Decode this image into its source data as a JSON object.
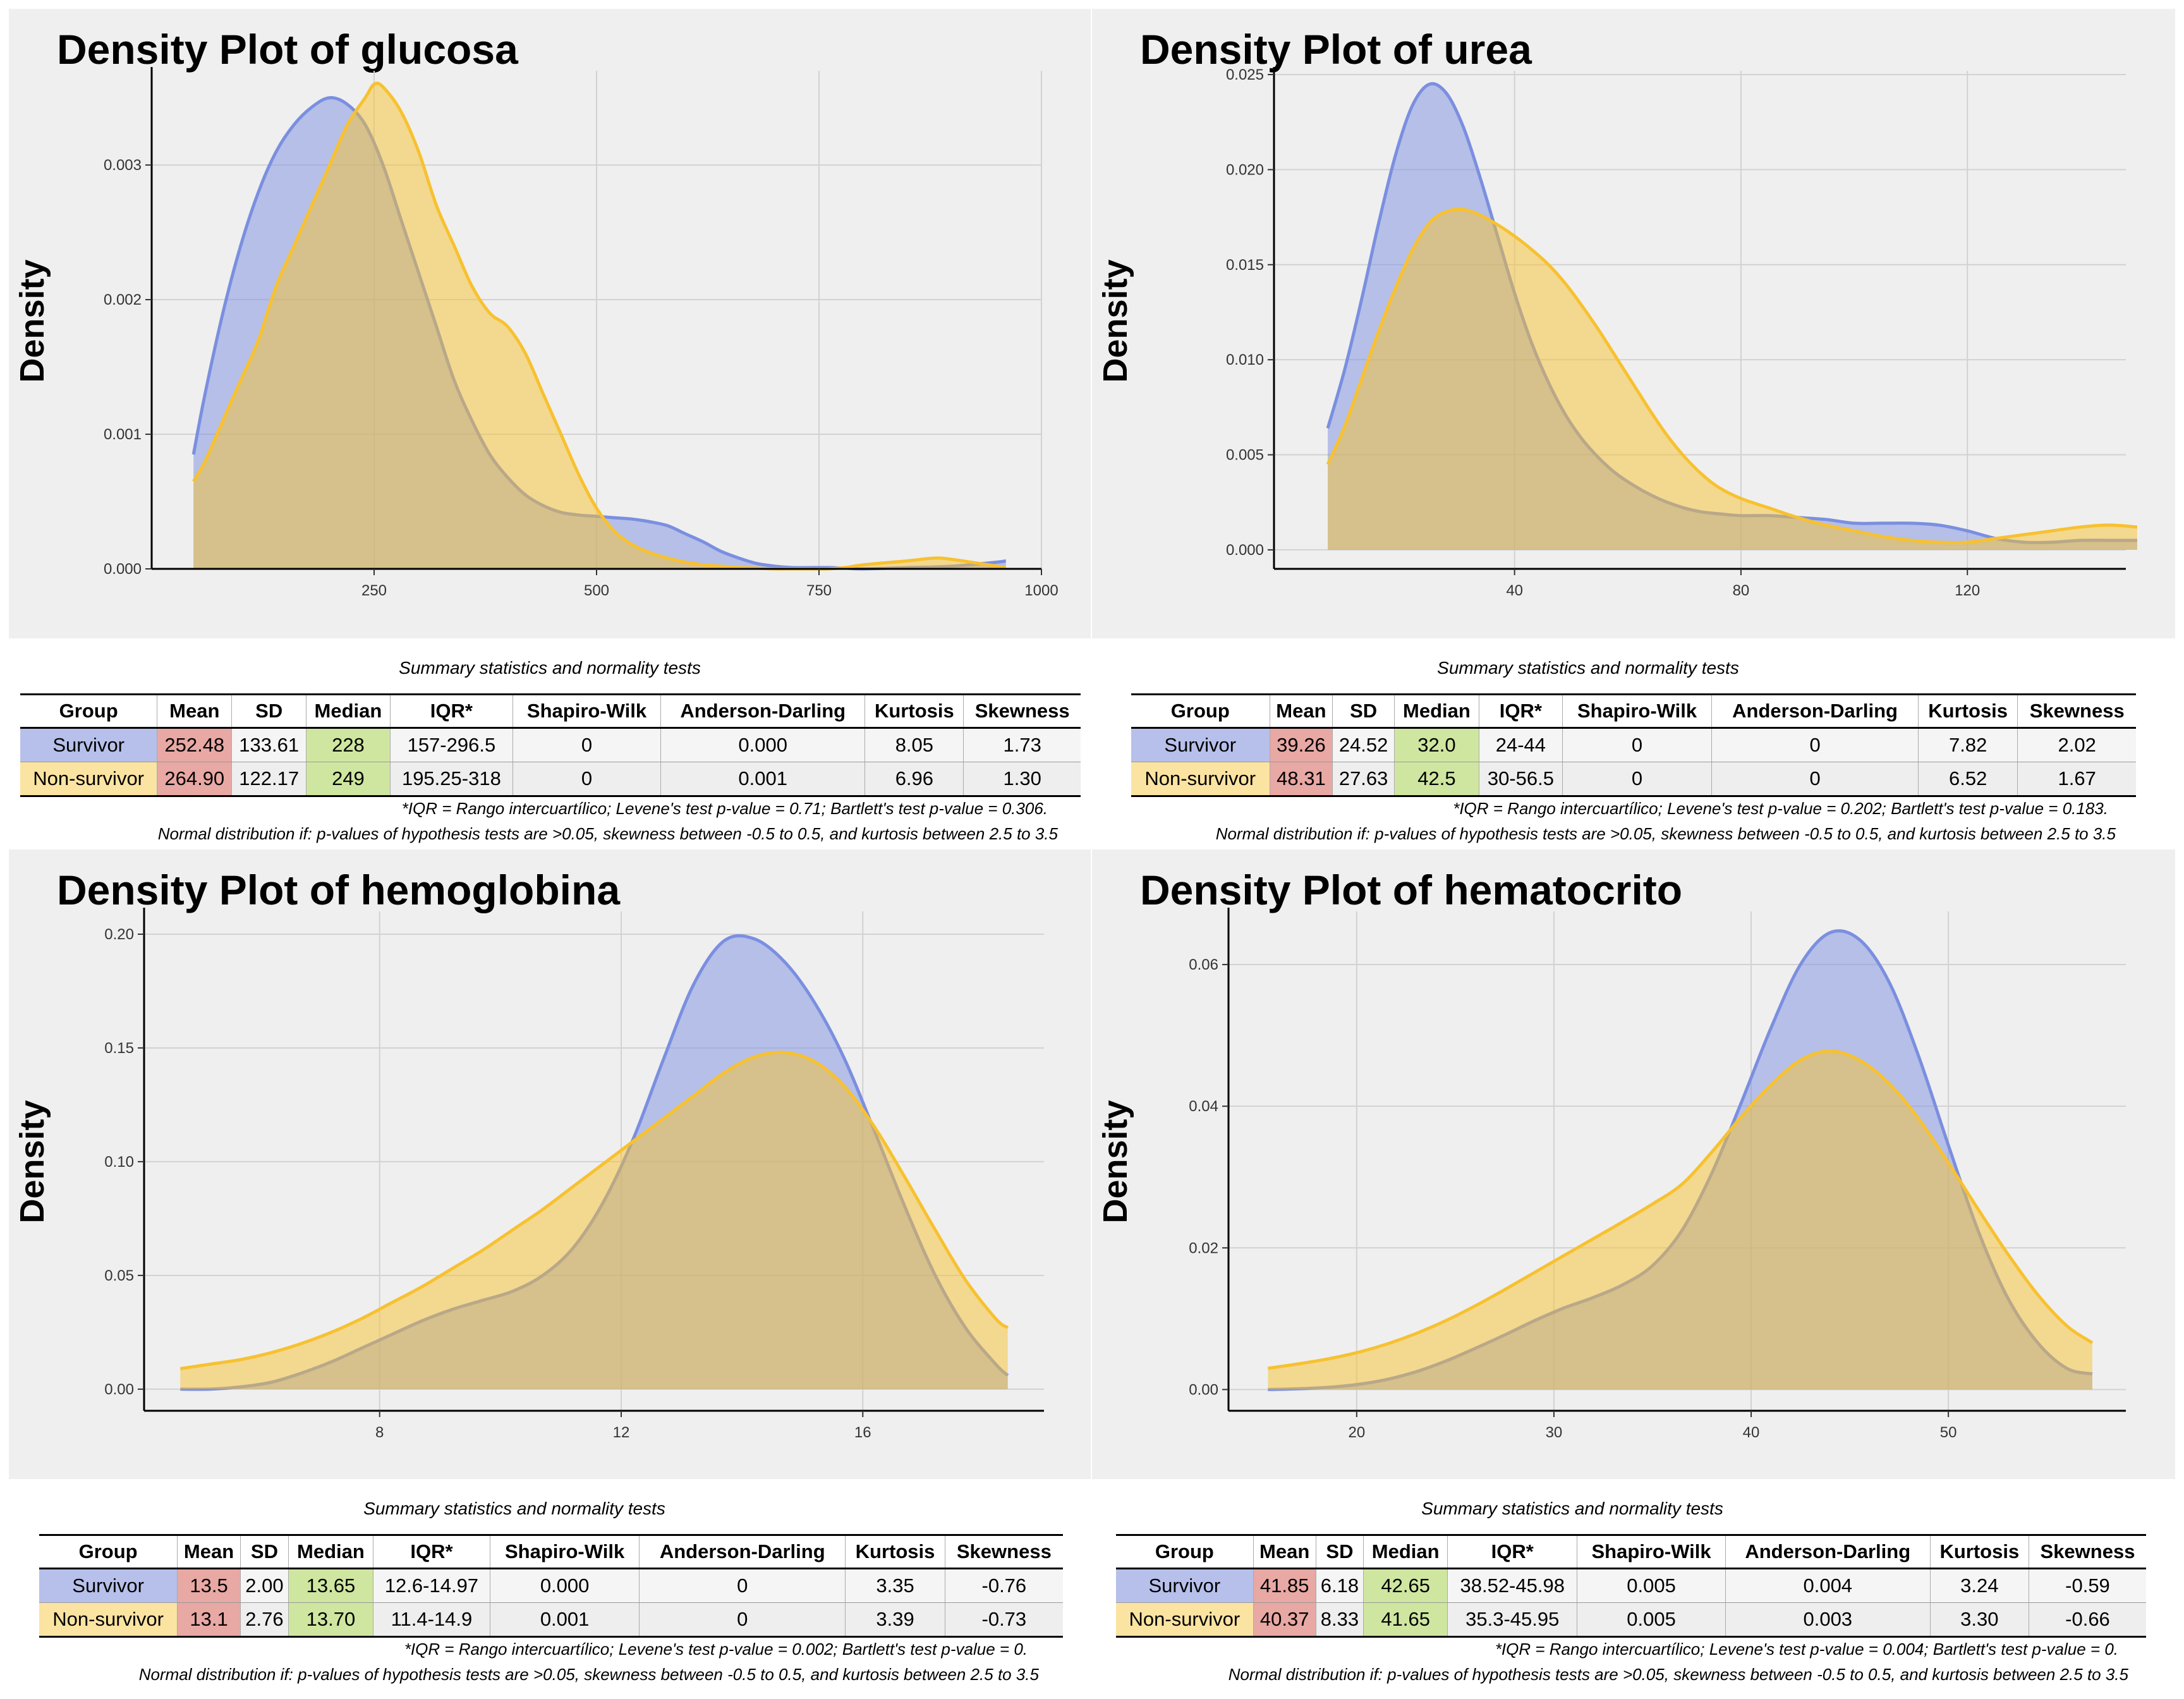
{
  "colors": {
    "survivor": "#7b8fe0",
    "nonsurvivor": "#f7c130",
    "mean_cell": "#e8a8a4",
    "median_cell": "#cfe6a0",
    "survivor_cell": "#b7c0ea",
    "nonsurvivor_cell": "#fbe3a1"
  },
  "chart_data": [
    {
      "type": "area",
      "title": "Density Plot of glucosa",
      "ylabel": "Density",
      "xlim": [
        0,
        1000
      ],
      "ylim": [
        0,
        0.0037
      ],
      "xticks": [
        250,
        500,
        750,
        1000
      ],
      "xtick_labels": [
        "250",
        "500",
        "750",
        "1000"
      ],
      "yticks": [
        0,
        0.001,
        0.002,
        0.003
      ],
      "ytick_labels": [
        "0.000",
        "0.001",
        "0.002",
        "0.003"
      ],
      "series": [
        {
          "name": "Survivor",
          "x": [
            47,
            60,
            80,
            100,
            120,
            140,
            160,
            180,
            200,
            220,
            240,
            260,
            280,
            300,
            320,
            340,
            360,
            380,
            400,
            420,
            440,
            460,
            480,
            500,
            520,
            540,
            560,
            580,
            600,
            620,
            640,
            660,
            680,
            700,
            720,
            740,
            760,
            780,
            800,
            850,
            900,
            950,
            960
          ],
          "y": [
            0.00085,
            0.0013,
            0.0019,
            0.0024,
            0.0028,
            0.0031,
            0.0033,
            0.00343,
            0.0035,
            0.00345,
            0.0033,
            0.003,
            0.0026,
            0.0022,
            0.0018,
            0.0014,
            0.0011,
            0.00085,
            0.00068,
            0.00055,
            0.00047,
            0.00042,
            0.0004,
            0.00039,
            0.00038,
            0.00037,
            0.00035,
            0.00032,
            0.00026,
            0.0002,
            0.00013,
            8e-05,
            4e-05,
            2e-05,
            1e-05,
            1e-05,
            1e-05,
            5e-06,
            0.0,
            1e-05,
            2e-05,
            5e-05,
            6e-05
          ]
        },
        {
          "name": "Non-survivor",
          "x": [
            47,
            60,
            80,
            100,
            120,
            140,
            160,
            180,
            200,
            220,
            240,
            250,
            260,
            280,
            300,
            320,
            340,
            360,
            380,
            400,
            420,
            440,
            460,
            480,
            500,
            520,
            540,
            560,
            580,
            600,
            620,
            640,
            660,
            680,
            700,
            720,
            740,
            760,
            780,
            800,
            850,
            880,
            900,
            950,
            960
          ],
          "y": [
            0.00065,
            0.0008,
            0.0011,
            0.0014,
            0.0017,
            0.0021,
            0.0024,
            0.0027,
            0.003,
            0.0033,
            0.0035,
            0.0036,
            0.00358,
            0.0034,
            0.0031,
            0.0027,
            0.0024,
            0.0021,
            0.0019,
            0.0018,
            0.0016,
            0.0013,
            0.001,
            0.0007,
            0.00045,
            0.00028,
            0.00018,
            0.00012,
            8e-05,
            5e-05,
            3e-05,
            2e-05,
            1e-05,
            5e-06,
            0.0,
            0.0,
            0.0,
            0.0,
            1e-05,
            3e-05,
            6e-05,
            8e-05,
            7e-05,
            2e-05,
            1e-05
          ]
        }
      ]
    },
    {
      "type": "area",
      "title": "Density Plot of urea",
      "ylabel": "Density",
      "xlim": [
        -2.5,
        148
      ],
      "ylim": [
        -0.001,
        0.0252
      ],
      "xticks": [
        40,
        80,
        120
      ],
      "xtick_labels": [
        "40",
        "80",
        "120"
      ],
      "yticks": [
        0,
        0.005,
        0.01,
        0.015,
        0.02,
        0.025
      ],
      "ytick_labels": [
        "0.000",
        "0.005",
        "0.010",
        "0.015",
        "0.020",
        "0.025"
      ],
      "series": [
        {
          "name": "Survivor",
          "x": [
            7,
            10,
            13,
            16,
            19,
            22,
            25,
            28,
            31,
            34,
            37,
            40,
            43,
            46,
            49,
            52,
            55,
            58,
            61,
            64,
            67,
            70,
            73,
            76,
            80,
            85,
            90,
            95,
            100,
            105,
            110,
            115,
            120,
            125,
            130,
            135,
            140,
            145,
            150
          ],
          "y": [
            0.0064,
            0.0095,
            0.0132,
            0.0172,
            0.0208,
            0.0234,
            0.0245,
            0.024,
            0.0222,
            0.0195,
            0.0165,
            0.0135,
            0.0109,
            0.0088,
            0.0071,
            0.0058,
            0.0048,
            0.004,
            0.0034,
            0.0029,
            0.0025,
            0.0022,
            0.002,
            0.0019,
            0.0018,
            0.0018,
            0.0017,
            0.0016,
            0.0014,
            0.0014,
            0.0014,
            0.0013,
            0.001,
            0.0006,
            0.0004,
            0.0004,
            0.0005,
            0.0005,
            0.0005
          ]
        },
        {
          "name": "Non-survivor",
          "x": [
            7,
            10,
            13,
            16,
            19,
            22,
            25,
            28,
            31,
            34,
            37,
            40,
            43,
            46,
            49,
            52,
            55,
            58,
            61,
            64,
            67,
            70,
            73,
            76,
            80,
            85,
            90,
            95,
            100,
            105,
            110,
            115,
            120,
            125,
            130,
            135,
            140,
            145,
            150
          ],
          "y": [
            0.0045,
            0.0065,
            0.009,
            0.0115,
            0.0138,
            0.0158,
            0.0172,
            0.0178,
            0.0179,
            0.0176,
            0.0171,
            0.0165,
            0.0158,
            0.015,
            0.014,
            0.0128,
            0.0115,
            0.0101,
            0.0087,
            0.0073,
            0.006,
            0.0049,
            0.004,
            0.0033,
            0.0027,
            0.0022,
            0.0017,
            0.0013,
            0.001,
            0.0007,
            0.0005,
            0.0004,
            0.0004,
            0.0006,
            0.0008,
            0.001,
            0.0012,
            0.0013,
            0.0012
          ]
        }
      ]
    },
    {
      "type": "area",
      "title": "Density Plot of hemoglobina",
      "ylabel": "Density",
      "xlim": [
        4.1,
        19
      ],
      "ylim": [
        -0.0095,
        0.21
      ],
      "xticks": [
        8,
        12,
        16
      ],
      "xtick_labels": [
        "8",
        "12",
        "16"
      ],
      "yticks": [
        0,
        0.05,
        0.1,
        0.15,
        0.2
      ],
      "ytick_labels": [
        "0.00",
        "0.05",
        "0.10",
        "0.15",
        "0.20"
      ],
      "series": [
        {
          "name": "Survivor",
          "x": [
            4.7,
            5.2,
            5.7,
            6.2,
            6.7,
            7.2,
            7.7,
            8.2,
            8.7,
            9.2,
            9.7,
            10.2,
            10.7,
            11.2,
            11.7,
            12.2,
            12.7,
            13.2,
            13.7,
            14.2,
            14.7,
            15.2,
            15.7,
            16.2,
            16.7,
            17.2,
            17.7,
            18.2,
            18.4
          ],
          "y": [
            0.0,
            0.0,
            0.001,
            0.003,
            0.007,
            0.012,
            0.018,
            0.024,
            0.03,
            0.035,
            0.039,
            0.043,
            0.05,
            0.062,
            0.082,
            0.11,
            0.145,
            0.178,
            0.197,
            0.198,
            0.188,
            0.17,
            0.145,
            0.113,
            0.08,
            0.05,
            0.027,
            0.011,
            0.006
          ]
        },
        {
          "name": "Non-survivor",
          "x": [
            4.7,
            5.2,
            5.7,
            6.2,
            6.7,
            7.2,
            7.7,
            8.2,
            8.7,
            9.2,
            9.7,
            10.2,
            10.7,
            11.2,
            11.7,
            12.2,
            12.7,
            13.2,
            13.7,
            14.2,
            14.7,
            15.2,
            15.7,
            16.2,
            16.7,
            17.2,
            17.7,
            18.2,
            18.4
          ],
          "y": [
            0.009,
            0.011,
            0.013,
            0.016,
            0.02,
            0.025,
            0.031,
            0.038,
            0.045,
            0.053,
            0.061,
            0.07,
            0.079,
            0.089,
            0.099,
            0.109,
            0.119,
            0.129,
            0.139,
            0.146,
            0.148,
            0.144,
            0.133,
            0.115,
            0.093,
            0.07,
            0.048,
            0.031,
            0.027
          ]
        }
      ]
    },
    {
      "type": "area",
      "title": "Density Plot of hematocrito",
      "ylabel": "Density",
      "xlim": [
        13.5,
        59
      ],
      "ylim": [
        -0.003,
        0.0675
      ],
      "xticks": [
        20,
        30,
        40,
        50
      ],
      "xtick_labels": [
        "20",
        "30",
        "40",
        "50"
      ],
      "yticks": [
        0,
        0.02,
        0.04,
        0.06
      ],
      "ytick_labels": [
        "0.00",
        "0.02",
        "0.04",
        "0.06"
      ],
      "series": [
        {
          "name": "Survivor",
          "x": [
            15.5,
            17,
            18.5,
            20,
            21.5,
            23,
            24.5,
            26,
            27.5,
            29,
            30.5,
            32,
            33.5,
            35,
            36.5,
            38,
            39.5,
            41,
            42.5,
            44,
            45.5,
            47,
            48.5,
            50,
            51.5,
            53,
            54.5,
            56,
            57.3
          ],
          "y": [
            0.0,
            0.0001,
            0.0003,
            0.0007,
            0.0014,
            0.0025,
            0.004,
            0.0058,
            0.0077,
            0.0097,
            0.0115,
            0.013,
            0.0148,
            0.0175,
            0.0225,
            0.0305,
            0.0405,
            0.051,
            0.06,
            0.0645,
            0.0635,
            0.0575,
            0.047,
            0.0345,
            0.0225,
            0.013,
            0.0067,
            0.003,
            0.0022
          ]
        },
        {
          "name": "Non-survivor",
          "x": [
            15.5,
            17,
            18.5,
            20,
            21.5,
            23,
            24.5,
            26,
            27.5,
            29,
            30.5,
            32,
            33.5,
            35,
            36.5,
            38,
            39.5,
            41,
            42.5,
            44,
            45.5,
            47,
            48.5,
            50,
            51.5,
            53,
            54.5,
            56,
            57.3
          ],
          "y": [
            0.003,
            0.0036,
            0.0043,
            0.0052,
            0.0064,
            0.0079,
            0.0097,
            0.0118,
            0.0141,
            0.0165,
            0.0189,
            0.0213,
            0.0237,
            0.0262,
            0.029,
            0.0335,
            0.0385,
            0.043,
            0.0465,
            0.0478,
            0.0465,
            0.0432,
            0.0382,
            0.032,
            0.0255,
            0.0192,
            0.0135,
            0.009,
            0.0066
          ]
        }
      ]
    }
  ],
  "tables": [
    {
      "caption": "Summary statistics and normality tests",
      "headers": [
        "Group",
        "Mean",
        "SD",
        "Median",
        "IQR*",
        "Shapiro-Wilk",
        "Anderson-Darling",
        "Kurtosis",
        "Skewness"
      ],
      "rows": [
        [
          "Survivor",
          "252.48",
          "133.61",
          "228",
          "157-296.5",
          "0",
          "0.000",
          "8.05",
          "1.73"
        ],
        [
          "Non-survivor",
          "264.90",
          "122.17",
          "249",
          "195.25-318",
          "0",
          "0.001",
          "6.96",
          "1.30"
        ]
      ],
      "footnote1": "*IQR = Rango intercuartílico; Levene's test p-value = 0.71; Bartlett's test p-value = 0.306.",
      "footnote2": "Normal distribution if: p-values of hypothesis tests are >0.05, skewness between -0.5 to 0.5, and kurtosis between 2.5 to 3.5"
    },
    {
      "caption": "Summary statistics and normality tests",
      "headers": [
        "Group",
        "Mean",
        "SD",
        "Median",
        "IQR*",
        "Shapiro-Wilk",
        "Anderson-Darling",
        "Kurtosis",
        "Skewness"
      ],
      "rows": [
        [
          "Survivor",
          "39.26",
          "24.52",
          "32.0",
          "24-44",
          "0",
          "0",
          "7.82",
          "2.02"
        ],
        [
          "Non-survivor",
          "48.31",
          "27.63",
          "42.5",
          "30-56.5",
          "0",
          "0",
          "6.52",
          "1.67"
        ]
      ],
      "footnote1": "*IQR = Rango intercuartílico; Levene's test p-value = 0.202; Bartlett's test p-value = 0.183.",
      "footnote2": "Normal distribution if: p-values of hypothesis tests are >0.05, skewness between -0.5 to 0.5, and kurtosis between 2.5 to 3.5"
    },
    {
      "caption": "Summary statistics and normality tests",
      "headers": [
        "Group",
        "Mean",
        "SD",
        "Median",
        "IQR*",
        "Shapiro-Wilk",
        "Anderson-Darling",
        "Kurtosis",
        "Skewness"
      ],
      "rows": [
        [
          "Survivor",
          "13.5",
          "2.00",
          "13.65",
          "12.6-14.97",
          "0.000",
          "0",
          "3.35",
          "-0.76"
        ],
        [
          "Non-survivor",
          "13.1",
          "2.76",
          "13.70",
          "11.4-14.9",
          "0.001",
          "0",
          "3.39",
          "-0.73"
        ]
      ],
      "footnote1": "*IQR = Rango intercuartílico; Levene's test p-value = 0.002; Bartlett's test p-value = 0.",
      "footnote2": "Normal distribution if: p-values of hypothesis tests are >0.05, skewness between -0.5 to 0.5, and kurtosis between 2.5 to 3.5"
    },
    {
      "caption": "Summary statistics and normality tests",
      "headers": [
        "Group",
        "Mean",
        "SD",
        "Median",
        "IQR*",
        "Shapiro-Wilk",
        "Anderson-Darling",
        "Kurtosis",
        "Skewness"
      ],
      "rows": [
        [
          "Survivor",
          "41.85",
          "6.18",
          "42.65",
          "38.52-45.98",
          "0.005",
          "0.004",
          "3.24",
          "-0.59"
        ],
        [
          "Non-survivor",
          "40.37",
          "8.33",
          "41.65",
          "35.3-45.95",
          "0.005",
          "0.003",
          "3.30",
          "-0.66"
        ]
      ],
      "footnote1": "*IQR = Rango intercuartílico; Levene's test p-value = 0.004; Bartlett's test p-value = 0.",
      "footnote2": "Normal distribution if: p-values of hypothesis tests are >0.05, skewness between -0.5 to 0.5, and kurtosis between 2.5 to 3.5"
    }
  ]
}
